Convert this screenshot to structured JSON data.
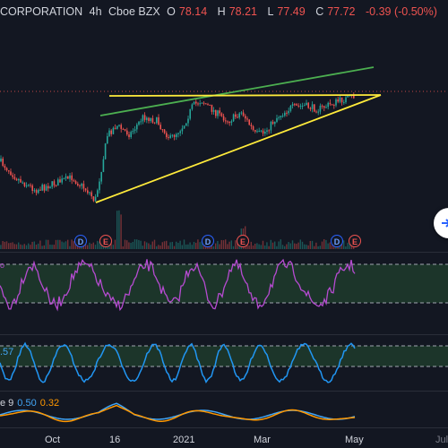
{
  "header": {
    "symbol": "CORPORATION",
    "interval": "4h",
    "exchange": "Cboe BZX",
    "open_label": "O",
    "open": "78.14",
    "high_label": "H",
    "high": "78.21",
    "low_label": "L",
    "low": "77.49",
    "close_label": "C",
    "close": "77.72",
    "change": "-0.39 (-0.50%)"
  },
  "events": [
    {
      "type": "D"
    },
    {
      "type": "E"
    },
    {
      "type": "D"
    },
    {
      "type": "E"
    },
    {
      "type": "D"
    },
    {
      "type": "E"
    }
  ],
  "indicators": {
    "rsi_label": "o",
    "stoch_value": ".57",
    "macd_name": "e 9",
    "macd_value_1": "0.50",
    "macd_value_2": "0.32"
  },
  "x_axis": {
    "ticks": [
      "Oct",
      "16",
      "2021",
      "Mar",
      "May",
      "Jul"
    ]
  },
  "colors": {
    "background": "#131722",
    "candle_up": "#26a69a",
    "candle_down": "#ef5350",
    "trendline_green": "#4caf50",
    "trendline_yellow": "#ffeb3b",
    "rsi": "#b64bd1",
    "stoch": "#2196f3",
    "macd": "#42a5f5",
    "signal": "#ff9800"
  },
  "icons": {
    "fab": "arrow-right-icon"
  }
}
